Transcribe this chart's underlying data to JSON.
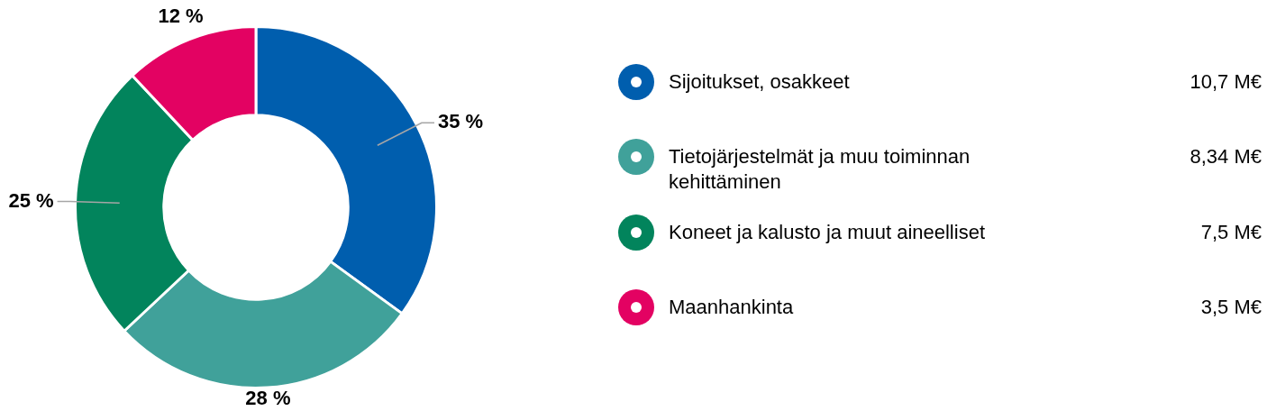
{
  "chart_data": {
    "type": "donut",
    "categories": [
      "Sijoitukset, osakkeet",
      "Tietojärjestelmät ja muu toiminnan kehittäminen",
      "Koneet ja kalusto ja muut aineelliset",
      "Maanhankinta"
    ],
    "values": [
      35,
      28,
      25,
      12
    ],
    "colors": [
      "#005eae",
      "#40a19a",
      "#02845c",
      "#e30262"
    ],
    "value_labels": [
      "35 %",
      "28 %",
      "25 %",
      "12 %"
    ],
    "annotations": [
      "10,7 M€",
      "8,34 M€",
      "7,5 M€",
      "3,5 M€"
    ],
    "legend": "right"
  }
}
